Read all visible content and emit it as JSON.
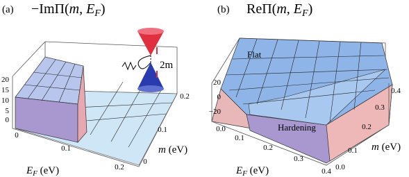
{
  "panels": [
    {
      "label": "(a)",
      "title": [
        "−ImΠ(",
        "m",
        ", ",
        "E",
        "F",
        ")"
      ],
      "z_ticks": [
        "20",
        "15",
        "10",
        "5",
        "0"
      ],
      "x_ticks": [
        "0",
        "0.1",
        "0.2"
      ],
      "x_label": [
        "E",
        "F",
        " (eV)"
      ],
      "y_ticks": [
        "0",
        "0.1",
        "0.2"
      ],
      "y_label": [
        "m",
        " (eV)"
      ],
      "inset_label": "2m"
    },
    {
      "label": "(b)",
      "title": [
        "ReΠ(",
        "m",
        ", ",
        "E",
        "F",
        ")"
      ],
      "z_ticks": [
        "20",
        "0",
        "−20"
      ],
      "x_ticks": [
        "0.0",
        "0.1",
        "0.2",
        "0.3",
        "0.4"
      ],
      "x_label": [
        "E",
        "F",
        " (eV)"
      ],
      "y_ticks": [
        "0.0",
        "0.1",
        "0.2",
        "0.3",
        "0.4"
      ],
      "y_label": [
        "m",
        " (eV)"
      ],
      "annotations": [
        "Flat",
        "Hardening"
      ]
    }
  ]
}
